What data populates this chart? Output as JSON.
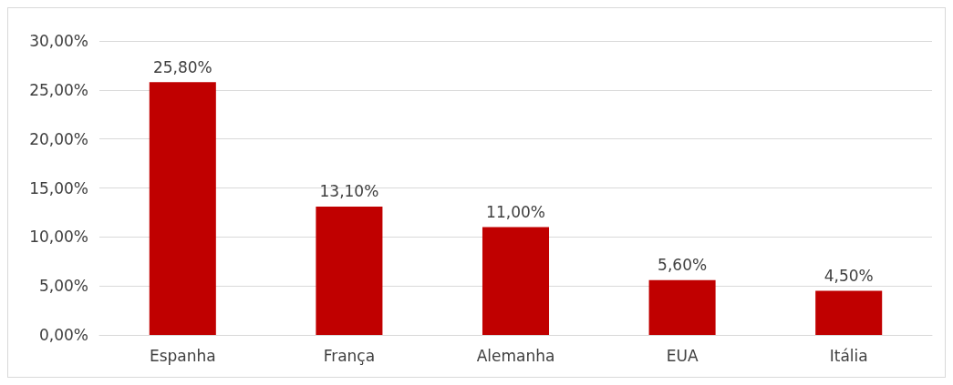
{
  "chart_data": {
    "type": "bar",
    "categories": [
      "Espanha",
      "França",
      "Alemanha",
      "EUA",
      "Itália"
    ],
    "values": [
      25.8,
      13.1,
      11.0,
      5.6,
      4.5
    ],
    "value_labels": [
      "25,80%",
      "13,10%",
      "11,00%",
      "5,60%",
      "4,50%"
    ],
    "color": "#c00000",
    "ylim": [
      0,
      30
    ],
    "yticks": [
      {
        "value": 0,
        "label": "0,00%"
      },
      {
        "value": 5,
        "label": "5,00%"
      },
      {
        "value": 10,
        "label": "10,00%"
      },
      {
        "value": 15,
        "label": "15,00%"
      },
      {
        "value": 20,
        "label": "20,00%"
      },
      {
        "value": 25,
        "label": "25,00%"
      },
      {
        "value": 30,
        "label": "30,00%"
      }
    ],
    "grid": "y"
  }
}
